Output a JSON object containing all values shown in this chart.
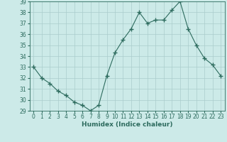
{
  "x": [
    0,
    1,
    2,
    3,
    4,
    5,
    6,
    7,
    8,
    9,
    10,
    11,
    12,
    13,
    14,
    15,
    16,
    17,
    18,
    19,
    20,
    21,
    22,
    23
  ],
  "y": [
    33,
    32,
    31.5,
    30.8,
    30.4,
    29.8,
    29.5,
    29.0,
    29.5,
    32.2,
    34.3,
    35.5,
    36.5,
    38.0,
    37.0,
    37.3,
    37.3,
    38.2,
    39.0,
    36.5,
    35.0,
    33.8,
    33.2,
    32.2
  ],
  "line_color": "#2d6b5e",
  "marker": "+",
  "marker_size": 4,
  "background_color": "#cceae8",
  "grid_color": "#aacccc",
  "xlabel": "Humidex (Indice chaleur)",
  "ylim": [
    29,
    39
  ],
  "xlim": [
    -0.5,
    23.5
  ],
  "yticks": [
    29,
    30,
    31,
    32,
    33,
    34,
    35,
    36,
    37,
    38,
    39
  ],
  "xticks": [
    0,
    1,
    2,
    3,
    4,
    5,
    6,
    7,
    8,
    9,
    10,
    11,
    12,
    13,
    14,
    15,
    16,
    17,
    18,
    19,
    20,
    21,
    22,
    23
  ],
  "tick_fontsize": 5.5,
  "label_fontsize": 6.5
}
